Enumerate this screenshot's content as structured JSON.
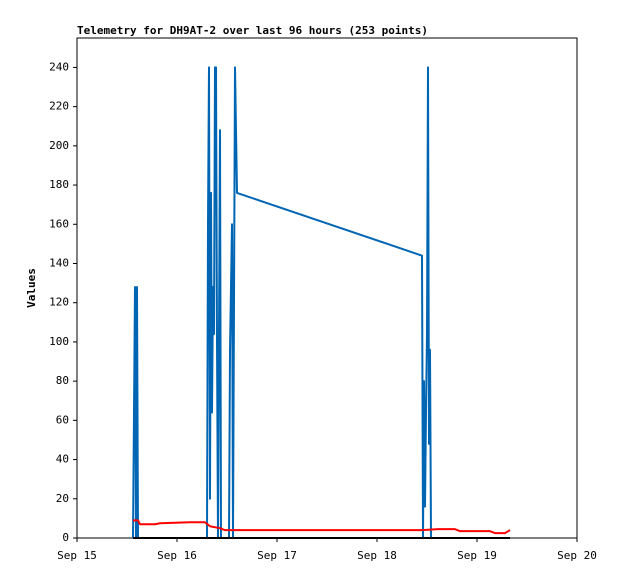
{
  "chart_data": {
    "type": "line",
    "title": "Telemetry for DH9AT-2 over last 96 hours (253 points)",
    "y_label": "Values",
    "xlim": [
      0,
      5
    ],
    "xticks": [
      {
        "value": 0,
        "label": "Sep 15"
      },
      {
        "value": 1,
        "label": "Sep 16"
      },
      {
        "value": 2,
        "label": "Sep 17"
      },
      {
        "value": 3,
        "label": "Sep 18"
      },
      {
        "value": 4,
        "label": "Sep 19"
      },
      {
        "value": 5,
        "label": "Sep 20"
      }
    ],
    "ylim": [
      0,
      255
    ],
    "yticks": [
      0,
      20,
      40,
      60,
      80,
      100,
      120,
      140,
      160,
      180,
      200,
      220,
      240
    ],
    "grid": false,
    "series": [
      {
        "color": "#0066b3",
        "x": [
          0.56,
          0.57,
          0.58,
          0.59,
          0.6,
          0.61,
          1.3,
          1.31,
          1.32,
          1.33,
          1.34,
          1.35,
          1.36,
          1.37,
          1.38,
          1.39,
          1.4,
          1.41,
          1.43,
          1.44,
          1.52,
          1.53,
          1.54,
          1.55,
          1.56,
          1.58,
          1.59,
          1.6,
          3.45,
          3.46,
          3.47,
          3.48,
          3.49,
          3.5,
          3.51,
          3.52,
          3.53,
          3.54
        ],
        "values": [
          0,
          64,
          128,
          0,
          128,
          0,
          0,
          160,
          240,
          20,
          176,
          64,
          128,
          104,
          240,
          240,
          100,
          0,
          208,
          0,
          0,
          96,
          128,
          160,
          0,
          240,
          208,
          176,
          144,
          0,
          80,
          16,
          64,
          104,
          240,
          48,
          96,
          0
        ]
      },
      {
        "color": "#ff0000",
        "x": [
          0.56,
          0.61,
          0.63,
          0.78,
          0.83,
          1.13,
          1.28,
          1.33,
          1.43,
          1.48,
          3.45,
          3.61,
          3.78,
          3.83,
          4.13,
          4.18,
          4.28,
          4.33
        ],
        "values": [
          9,
          9,
          7,
          7,
          7.5,
          8,
          8,
          6,
          5,
          4,
          4,
          4.5,
          4.5,
          3.5,
          3.5,
          2.5,
          2.5,
          4
        ]
      },
      {
        "color": "#000000",
        "x": [
          0.56,
          4.33
        ],
        "values": [
          0,
          0
        ]
      }
    ]
  }
}
